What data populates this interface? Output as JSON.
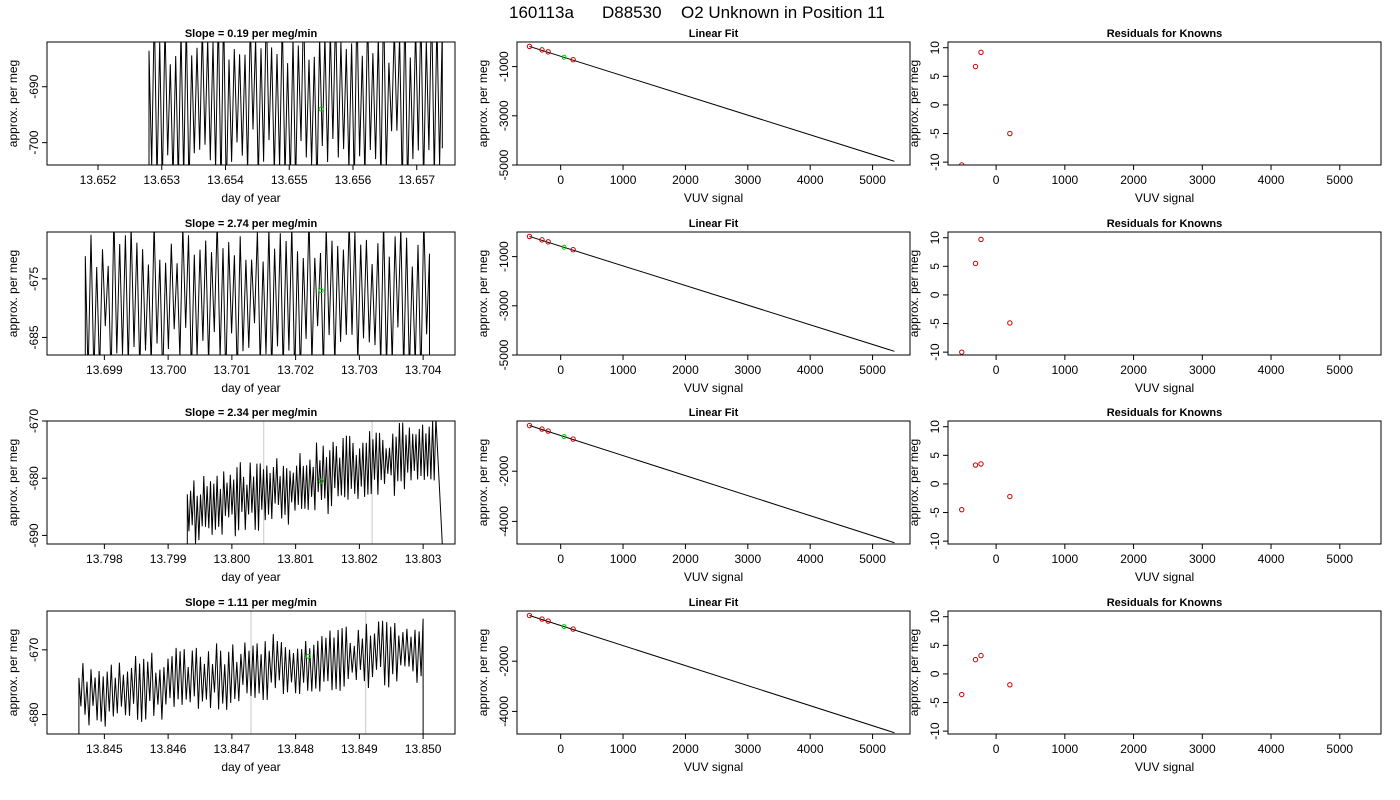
{
  "figure": {
    "title_parts": [
      "160113a",
      "D88530",
      "O2 Unknown in Position  11"
    ]
  },
  "colors": {
    "trace": "#000000",
    "unknown_point": "#00d000",
    "known_point": "#cc0000",
    "reference_line": "#c8c8c8"
  },
  "chart_data": [
    {
      "type": "line",
      "row": 1,
      "title": "Slope =  0.19  per meg/min",
      "xlabel": "day of year",
      "ylabel": "approx. per meg",
      "xlim": [
        13.6512,
        13.6576
      ],
      "ylim": [
        -704,
        -682
      ],
      "xticks": [
        13.652,
        13.653,
        13.654,
        13.655,
        13.656,
        13.657
      ],
      "xtick_labels": [
        "13.652",
        "13.653",
        "13.654",
        "13.655",
        "13.656",
        "13.657"
      ],
      "yticks": [
        -700,
        -690
      ],
      "ytick_labels": [
        "-700",
        "-690"
      ],
      "trace": {
        "x_start": 13.6528,
        "x_end": 13.6574,
        "n": 110,
        "center": -692,
        "amplitude": 16,
        "drift": 0,
        "seed": 3,
        "final_x": 13.6574,
        "final_y": -701
      },
      "reference_lines": [],
      "unknown": {
        "x": 13.6555,
        "y": -694
      }
    },
    {
      "type": "line",
      "row": 2,
      "title": "Slope =  2.74  per meg/min",
      "xlabel": "day of year",
      "ylabel": "approx. per meg",
      "xlim": [
        13.6981,
        13.7045
      ],
      "ylim": [
        -688,
        -667
      ],
      "xticks": [
        13.699,
        13.7,
        13.701,
        13.702,
        13.703,
        13.704
      ],
      "xtick_labels": [
        "13.699",
        "13.700",
        "13.701",
        "13.702",
        "13.703",
        "13.704"
      ],
      "yticks": [
        -685,
        -675
      ],
      "ytick_labels": [
        "-685",
        "-675"
      ],
      "trace": {
        "x_start": 13.6987,
        "x_end": 13.7041,
        "n": 120,
        "center": -678,
        "amplitude": 13,
        "drift": 0,
        "seed": 7,
        "final_x": 13.7041,
        "final_y": -688
      },
      "reference_lines": [],
      "unknown": {
        "x": 13.7024,
        "y": -677
      }
    },
    {
      "type": "line",
      "row": 3,
      "title": "Slope =  2.34  per meg/min",
      "xlabel": "day of year",
      "ylabel": "approx. per meg",
      "xlim": [
        13.7971,
        13.8035
      ],
      "ylim": [
        -691.5,
        -670
      ],
      "xticks": [
        13.798,
        13.799,
        13.8,
        13.801,
        13.802,
        13.803
      ],
      "xtick_labels": [
        "13.798",
        "13.799",
        "13.800",
        "13.801",
        "13.802",
        "13.803"
      ],
      "yticks": [
        -690,
        -680,
        -670
      ],
      "ytick_labels": [
        "-690",
        "-680",
        "-670"
      ],
      "trace": {
        "x_start": 13.7993,
        "x_end": 13.8032,
        "n": 150,
        "center": -686,
        "amplitude": 6,
        "drift": 11,
        "seed": 11,
        "final_x": 13.8033,
        "final_y": -691.5
      },
      "reference_lines": [
        13.8005,
        13.8022
      ],
      "unknown": {
        "x": 13.8014,
        "y": -680.5
      }
    },
    {
      "type": "line",
      "row": 4,
      "title": "Slope =  1.11  per meg/min",
      "xlabel": "day of year",
      "ylabel": "approx. per meg",
      "xlim": [
        13.8441,
        13.8505
      ],
      "ylim": [
        -683,
        -664
      ],
      "xticks": [
        13.845,
        13.846,
        13.847,
        13.848,
        13.849,
        13.85
      ],
      "xtick_labels": [
        "13.845",
        "13.846",
        "13.847",
        "13.848",
        "13.849",
        "13.850"
      ],
      "yticks": [
        -680,
        -670
      ],
      "ytick_labels": [
        "-680",
        "-670"
      ],
      "trace": {
        "x_start": 13.8446,
        "x_end": 13.85,
        "n": 170,
        "center": -677,
        "amplitude": 5,
        "drift": 7,
        "seed": 19,
        "final_x": 13.85,
        "final_y": -683
      },
      "reference_lines": [
        13.8473,
        13.8491
      ],
      "unknown": {
        "x": 13.8482,
        "y": -671
      }
    },
    {
      "type": "scatter",
      "row": 1,
      "title": "Linear Fit",
      "xlabel": "VUV signal",
      "ylabel": "approx. per meg",
      "xlim": [
        -700,
        5600
      ],
      "ylim": [
        -5000,
        0
      ],
      "xticks": [
        0,
        1000,
        2000,
        3000,
        4000,
        5000
      ],
      "xtick_labels": [
        "0",
        "1000",
        "2000",
        "3000",
        "4000",
        "5000"
      ],
      "yticks": [
        -5000,
        -3000,
        -1000
      ],
      "ytick_labels": [
        "-5000",
        "-3000",
        "-1000"
      ],
      "fit_line": {
        "x": [
          -500,
          5350
        ],
        "y": [
          -180,
          -4850
        ]
      },
      "knowns": [
        {
          "x": -500,
          "y": -180
        },
        {
          "x": -300,
          "y": -320
        },
        {
          "x": -200,
          "y": -400
        },
        {
          "x": 200,
          "y": -720
        }
      ],
      "unknown": {
        "x": 55,
        "y": -620
      }
    },
    {
      "type": "scatter",
      "row": 2,
      "title": "Linear Fit",
      "xlabel": "VUV signal",
      "ylabel": "approx. per meg",
      "xlim": [
        -700,
        5600
      ],
      "ylim": [
        -5000,
        0
      ],
      "xticks": [
        0,
        1000,
        2000,
        3000,
        4000,
        5000
      ],
      "xtick_labels": [
        "0",
        "1000",
        "2000",
        "3000",
        "4000",
        "5000"
      ],
      "yticks": [
        -5000,
        -3000,
        -1000
      ],
      "ytick_labels": [
        "-5000",
        "-3000",
        "-1000"
      ],
      "fit_line": {
        "x": [
          -500,
          5350
        ],
        "y": [
          -180,
          -4850
        ]
      },
      "knowns": [
        {
          "x": -500,
          "y": -180
        },
        {
          "x": -300,
          "y": -320
        },
        {
          "x": -200,
          "y": -400
        },
        {
          "x": 200,
          "y": -720
        }
      ],
      "unknown": {
        "x": 55,
        "y": -620
      }
    },
    {
      "type": "scatter",
      "row": 3,
      "title": "Linear Fit",
      "xlabel": "VUV signal",
      "ylabel": "approx. per meg",
      "xlim": [
        -700,
        5600
      ],
      "ylim": [
        -4900,
        0
      ],
      "xticks": [
        0,
        1000,
        2000,
        3000,
        4000,
        5000
      ],
      "xtick_labels": [
        "0",
        "1000",
        "2000",
        "3000",
        "4000",
        "5000"
      ],
      "yticks": [
        -4000,
        -2000
      ],
      "ytick_labels": [
        "-4000",
        "-2000"
      ],
      "fit_line": {
        "x": [
          -500,
          5350
        ],
        "y": [
          -180,
          -4850
        ]
      },
      "knowns": [
        {
          "x": -500,
          "y": -180
        },
        {
          "x": -300,
          "y": -320
        },
        {
          "x": -200,
          "y": -400
        },
        {
          "x": 200,
          "y": -720
        }
      ],
      "unknown": {
        "x": 55,
        "y": -620
      }
    },
    {
      "type": "scatter",
      "row": 4,
      "title": "Linear Fit",
      "xlabel": "VUV signal",
      "ylabel": "approx. per meg",
      "xlim": [
        -700,
        5600
      ],
      "ylim": [
        -4900,
        0
      ],
      "xticks": [
        0,
        1000,
        2000,
        3000,
        4000,
        5000
      ],
      "xtick_labels": [
        "0",
        "1000",
        "2000",
        "3000",
        "4000",
        "5000"
      ],
      "yticks": [
        -4000,
        -2000
      ],
      "ytick_labels": [
        "-4000",
        "-2000"
      ],
      "fit_line": {
        "x": [
          -500,
          5350
        ],
        "y": [
          -180,
          -4850
        ]
      },
      "knowns": [
        {
          "x": -500,
          "y": -180
        },
        {
          "x": -300,
          "y": -320
        },
        {
          "x": -200,
          "y": -400
        },
        {
          "x": 200,
          "y": -720
        }
      ],
      "unknown": {
        "x": 55,
        "y": -620
      }
    },
    {
      "type": "scatter",
      "row": 1,
      "title": "Residuals for Knowns",
      "xlabel": "VUV signal",
      "ylabel": "approx. per meg",
      "xlim": [
        -700,
        5600
      ],
      "ylim": [
        -10.5,
        11
      ],
      "xticks": [
        0,
        1000,
        2000,
        3000,
        4000,
        5000
      ],
      "xtick_labels": [
        "0",
        "1000",
        "2000",
        "3000",
        "4000",
        "5000"
      ],
      "yticks": [
        -10,
        -5,
        0,
        5,
        10
      ],
      "ytick_labels": [
        "-10",
        "-5",
        "0",
        "5",
        "10"
      ],
      "knowns": [
        {
          "x": -500,
          "y": -10.5
        },
        {
          "x": -300,
          "y": 6.7
        },
        {
          "x": -220,
          "y": 9.2
        },
        {
          "x": 200,
          "y": -5.0
        }
      ]
    },
    {
      "type": "scatter",
      "row": 2,
      "title": "Residuals for Knowns",
      "xlabel": "VUV signal",
      "ylabel": "approx. per meg",
      "xlim": [
        -700,
        5600
      ],
      "ylim": [
        -10.5,
        11
      ],
      "xticks": [
        0,
        1000,
        2000,
        3000,
        4000,
        5000
      ],
      "xtick_labels": [
        "0",
        "1000",
        "2000",
        "3000",
        "4000",
        "5000"
      ],
      "yticks": [
        -10,
        -5,
        0,
        5,
        10
      ],
      "ytick_labels": [
        "-10",
        "-5",
        "0",
        "5",
        "10"
      ],
      "knowns": [
        {
          "x": -500,
          "y": -10.0
        },
        {
          "x": -300,
          "y": 5.5
        },
        {
          "x": -220,
          "y": 9.7
        },
        {
          "x": 200,
          "y": -4.9
        }
      ]
    },
    {
      "type": "scatter",
      "row": 3,
      "title": "Residuals for Knowns",
      "xlabel": "VUV signal",
      "ylabel": "approx. per meg",
      "xlim": [
        -700,
        5600
      ],
      "ylim": [
        -10.5,
        11
      ],
      "xticks": [
        0,
        1000,
        2000,
        3000,
        4000,
        5000
      ],
      "xtick_labels": [
        "0",
        "1000",
        "2000",
        "3000",
        "4000",
        "5000"
      ],
      "yticks": [
        -10,
        -5,
        0,
        5,
        10
      ],
      "ytick_labels": [
        "-10",
        "-5",
        "0",
        "5",
        "10"
      ],
      "knowns": [
        {
          "x": -500,
          "y": -4.5
        },
        {
          "x": -300,
          "y": 3.3
        },
        {
          "x": -220,
          "y": 3.5
        },
        {
          "x": 200,
          "y": -2.2
        }
      ]
    },
    {
      "type": "scatter",
      "row": 4,
      "title": "Residuals for Knowns",
      "xlabel": "VUV signal",
      "ylabel": "approx. per meg",
      "xlim": [
        -700,
        5600
      ],
      "ylim": [
        -10.5,
        11
      ],
      "xticks": [
        0,
        1000,
        2000,
        3000,
        4000,
        5000
      ],
      "xtick_labels": [
        "0",
        "1000",
        "2000",
        "3000",
        "4000",
        "5000"
      ],
      "yticks": [
        -10,
        -5,
        0,
        5,
        10
      ],
      "ytick_labels": [
        "-10",
        "-5",
        "0",
        "5",
        "10"
      ],
      "knowns": [
        {
          "x": -500,
          "y": -3.6
        },
        {
          "x": -300,
          "y": 2.5
        },
        {
          "x": -220,
          "y": 3.2
        },
        {
          "x": 200,
          "y": -1.9
        }
      ]
    }
  ]
}
